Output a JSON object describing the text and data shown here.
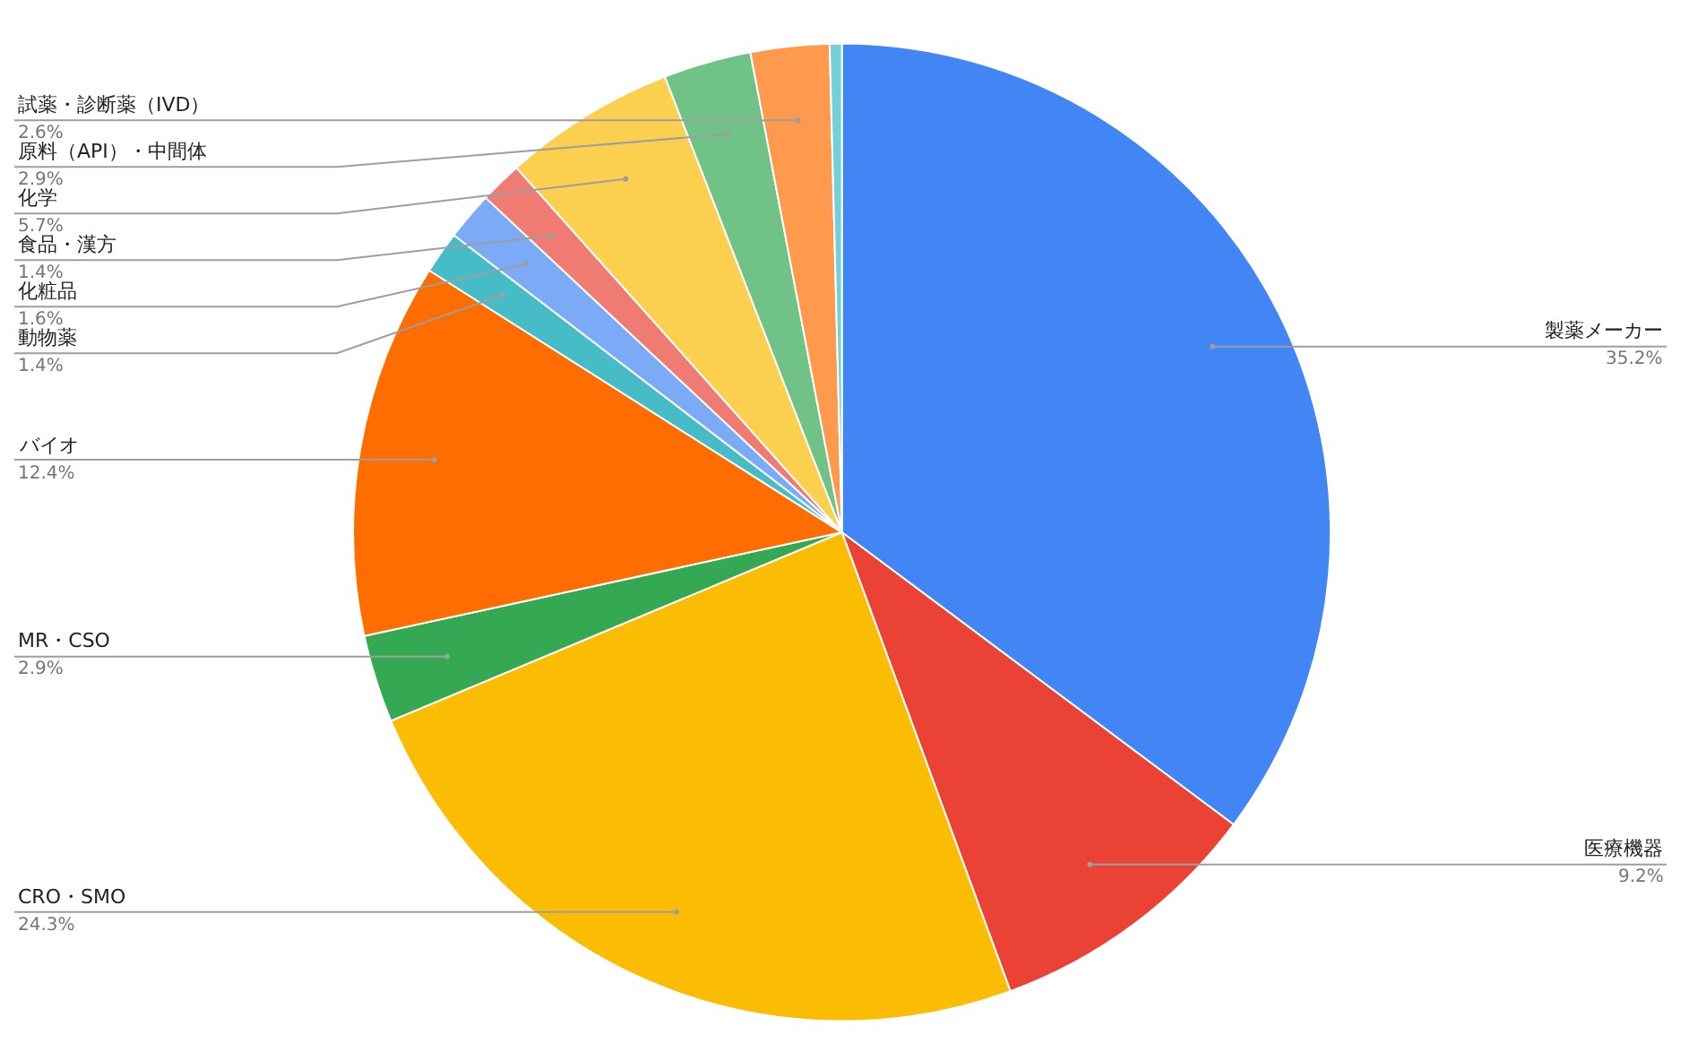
{
  "chart_data": {
    "type": "pie",
    "categories": [
      "製薬メーカー",
      "医療機器",
      "CRO・SMO",
      "MR・CSO",
      "バイオ",
      "動物薬",
      "化粧品",
      "食品・漢方",
      "化学",
      "原料（API）・中間体",
      "試薬・診断薬（IVD）",
      null
    ],
    "values": [
      35.2,
      9.2,
      24.3,
      2.9,
      12.4,
      1.4,
      1.6,
      1.4,
      5.7,
      2.9,
      2.6,
      0.4
    ],
    "value_labels": [
      "35.2%",
      "9.2%",
      "24.3%",
      "2.9%",
      "12.4%",
      "1.4%",
      "1.6%",
      "1.4%",
      "5.7%",
      "2.9%",
      "2.6%",
      null
    ],
    "colors": [
      "#4285f4",
      "#ea4335",
      "#fbbc04",
      "#34a853",
      "#ff6d01",
      "#46bdc6",
      "#7baaf7",
      "#f07b72",
      "#fcd04f",
      "#71c287",
      "#ff994d",
      "#73d0d8"
    ],
    "legend": false
  }
}
